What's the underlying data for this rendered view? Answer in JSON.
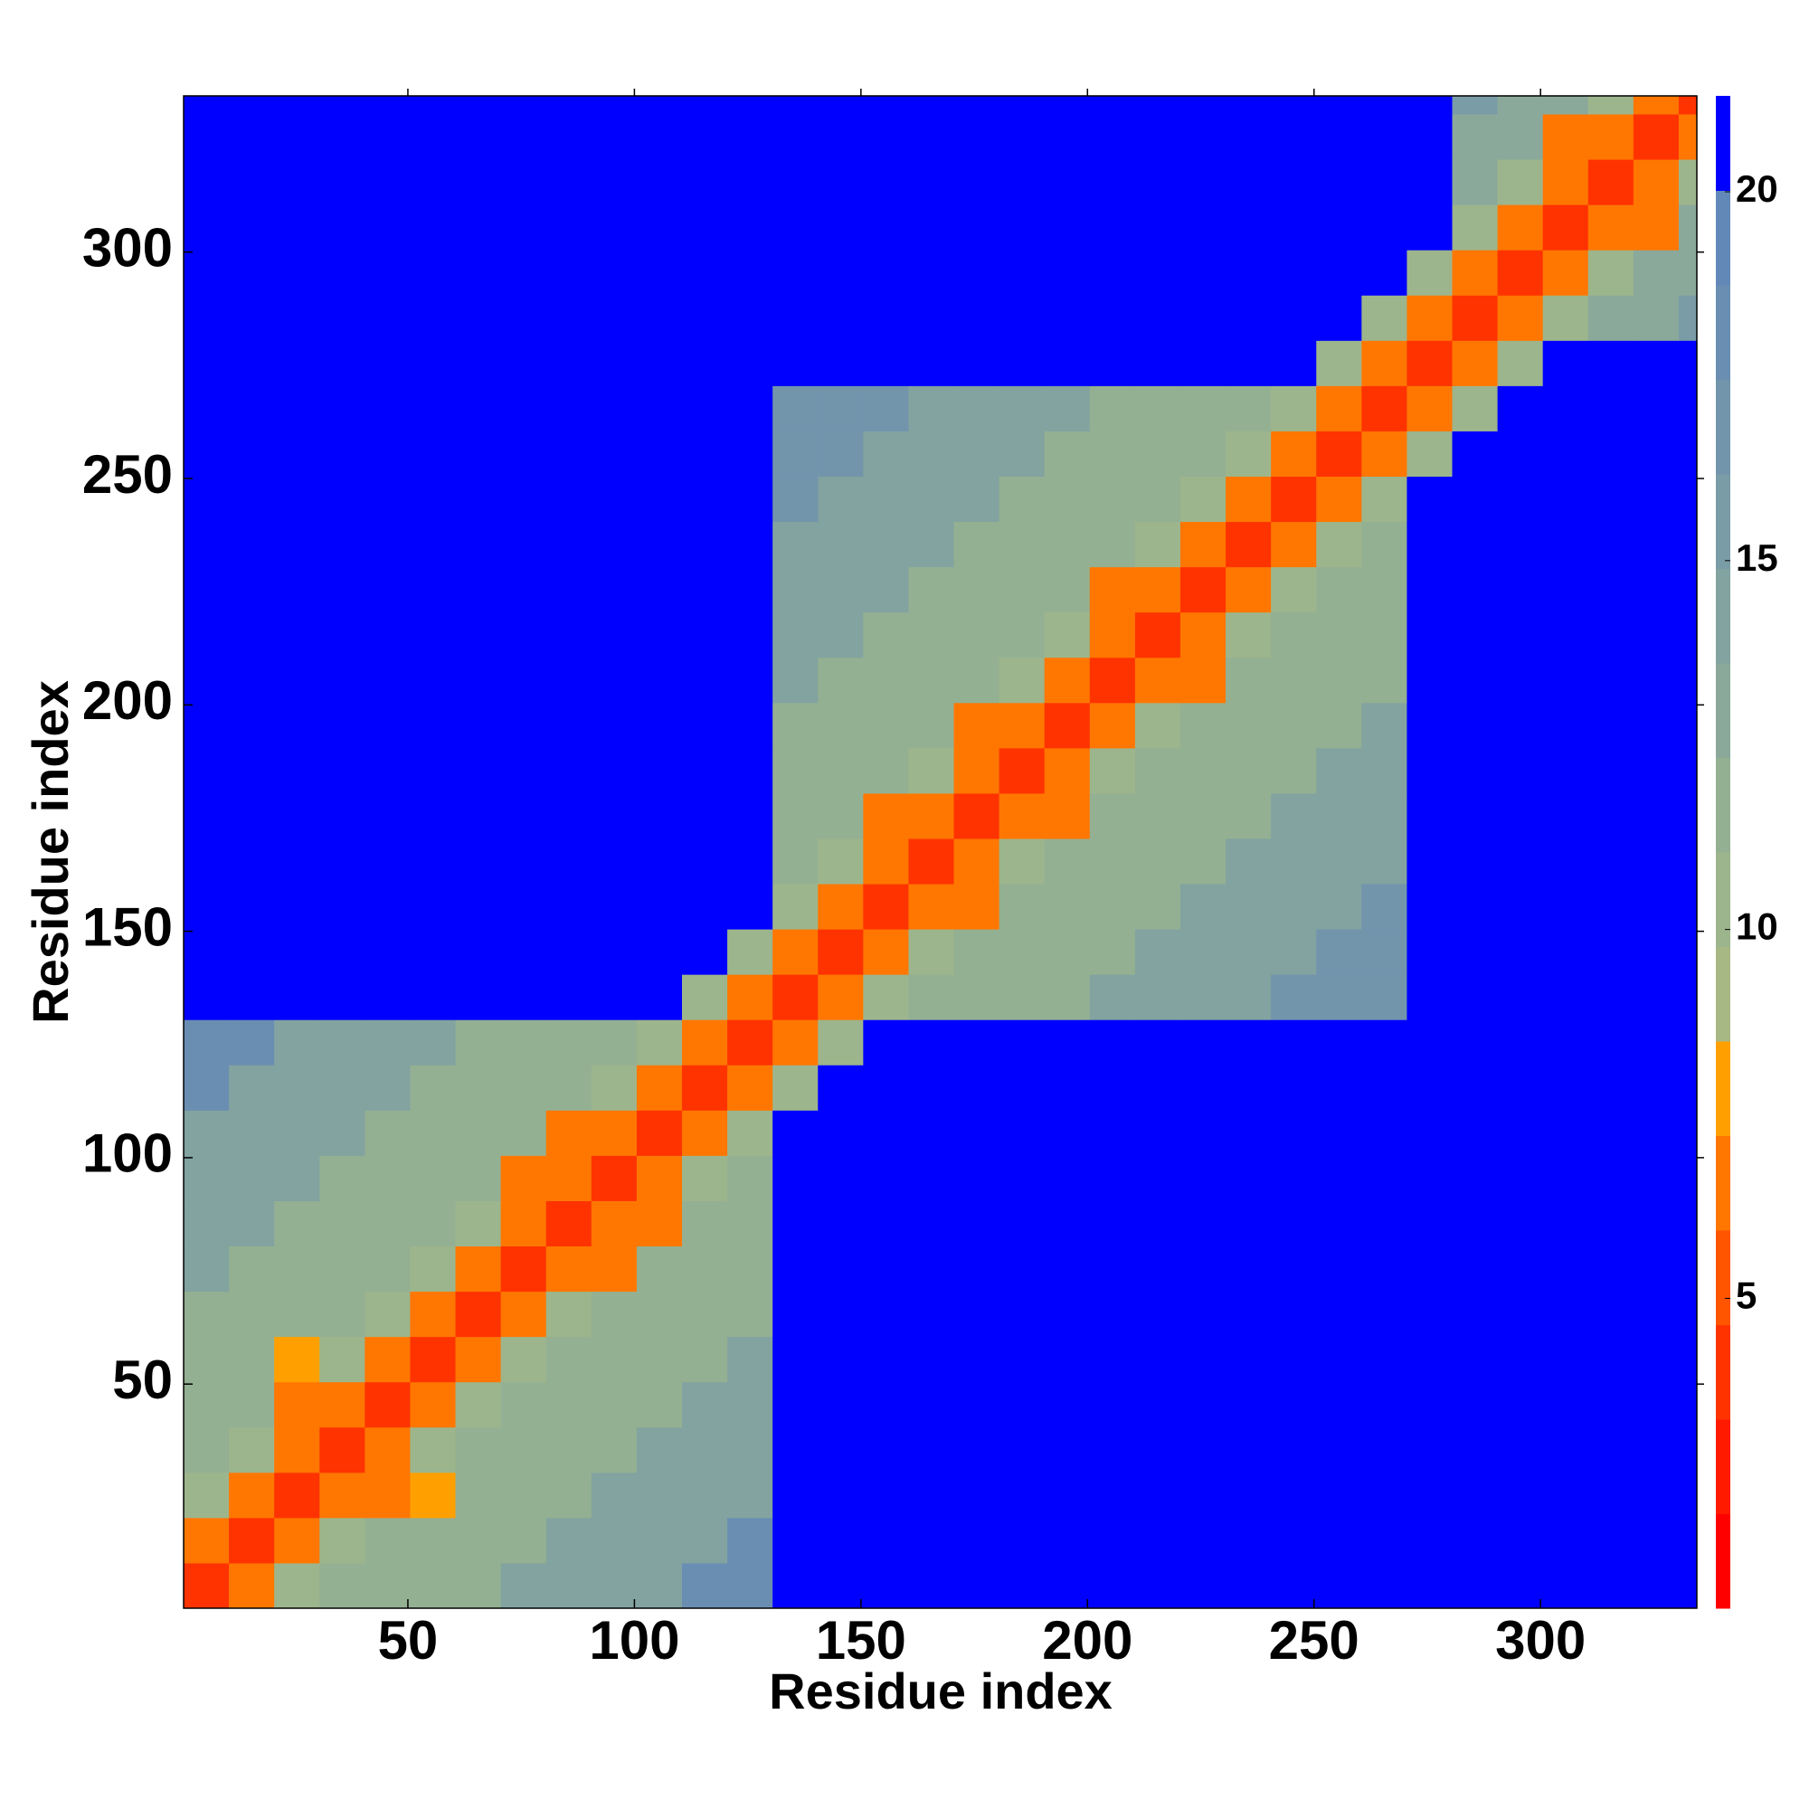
{
  "chart_data": {
    "type": "heatmap",
    "xlabel": "Residue index",
    "ylabel": "Residue index",
    "xbins": [
      0.5,
      10.5,
      20.5,
      30.5,
      40.5,
      50.5,
      60.5,
      70.5,
      80.5,
      90.5,
      100.5,
      110.5,
      120.5,
      130.5,
      140.5,
      150.5,
      160.5,
      170.5,
      180.5,
      190.5,
      200.5,
      210.5,
      220.5,
      230.5,
      240.5,
      250.5,
      260.5,
      270.5,
      280.5,
      290.5,
      300.5,
      310.5,
      320.5,
      330.5,
      334.5
    ],
    "ybins": [
      0.5,
      10.5,
      20.5,
      30.5,
      40.5,
      50.5,
      60.5,
      70.5,
      80.5,
      90.5,
      100.5,
      110.5,
      120.5,
      130.5,
      140.5,
      150.5,
      160.5,
      170.5,
      180.5,
      190.5,
      200.5,
      210.5,
      220.5,
      230.5,
      240.5,
      250.5,
      260.5,
      270.5,
      280.5,
      290.5,
      300.5,
      310.5,
      320.5,
      330.5,
      334.5
    ],
    "xlim": [
      0.5,
      334.5
    ],
    "ylim": [
      0.5,
      334.5
    ],
    "xticks": [
      50,
      100,
      150,
      200,
      250,
      300
    ],
    "yticks": [
      50,
      100,
      150,
      200,
      250,
      300
    ],
    "zlim": [
      0.8,
      21.3
    ],
    "colorbar_ticks": [
      5,
      10,
      15,
      20
    ],
    "colors": [
      "#ff0000",
      "#ff1a00",
      "#ff3300",
      "#ff5500",
      "#ff7700",
      "#ffa000",
      "#a8b884",
      "#9db58c",
      "#94b092",
      "#8aa99a",
      "#82a3a0",
      "#7a9ca6",
      "#7295ac",
      "#6a8eb2",
      "#6288b8",
      "#0000ff"
    ],
    "z": [
      [
        4,
        7,
        10,
        12,
        12,
        12,
        12,
        14,
        14,
        14,
        14,
        18,
        18,
        21,
        21,
        21,
        21,
        21,
        21,
        21,
        21,
        21,
        21,
        21,
        21,
        21,
        21,
        21,
        21,
        21,
        21,
        21,
        21,
        21
      ],
      [
        7,
        4,
        7,
        10,
        12,
        12,
        12,
        12,
        14,
        14,
        14,
        14,
        18,
        21,
        21,
        21,
        21,
        21,
        21,
        21,
        21,
        21,
        21,
        21,
        21,
        21,
        21,
        21,
        21,
        21,
        21,
        21,
        21,
        21
      ],
      [
        10,
        7,
        4,
        7,
        7,
        8,
        12,
        12,
        12,
        14,
        14,
        14,
        14,
        21,
        21,
        21,
        21,
        21,
        21,
        21,
        21,
        21,
        21,
        21,
        21,
        21,
        21,
        21,
        21,
        21,
        21,
        21,
        21,
        21
      ],
      [
        12,
        10,
        7,
        4,
        7,
        10,
        12,
        12,
        12,
        12,
        14,
        14,
        14,
        21,
        21,
        21,
        21,
        21,
        21,
        21,
        21,
        21,
        21,
        21,
        21,
        21,
        21,
        21,
        21,
        21,
        21,
        21,
        21,
        21
      ],
      [
        12,
        12,
        7,
        7,
        4,
        7,
        10,
        12,
        12,
        12,
        12,
        14,
        14,
        21,
        21,
        21,
        21,
        21,
        21,
        21,
        21,
        21,
        21,
        21,
        21,
        21,
        21,
        21,
        21,
        21,
        21,
        21,
        21,
        21
      ],
      [
        12,
        12,
        8,
        10,
        7,
        4,
        7,
        10,
        12,
        12,
        12,
        12,
        14,
        21,
        21,
        21,
        21,
        21,
        21,
        21,
        21,
        21,
        21,
        21,
        21,
        21,
        21,
        21,
        21,
        21,
        21,
        21,
        21,
        21
      ],
      [
        12,
        12,
        12,
        12,
        10,
        7,
        4,
        7,
        10,
        12,
        12,
        12,
        12,
        21,
        21,
        21,
        21,
        21,
        21,
        21,
        21,
        21,
        21,
        21,
        21,
        21,
        21,
        21,
        21,
        21,
        21,
        21,
        21,
        21
      ],
      [
        14,
        12,
        12,
        12,
        12,
        10,
        7,
        4,
        7,
        7,
        12,
        12,
        12,
        21,
        21,
        21,
        21,
        21,
        21,
        21,
        21,
        21,
        21,
        21,
        21,
        21,
        21,
        21,
        21,
        21,
        21,
        21,
        21,
        21
      ],
      [
        14,
        14,
        12,
        12,
        12,
        12,
        10,
        7,
        4,
        7,
        6,
        12,
        12,
        21,
        21,
        21,
        21,
        21,
        21,
        21,
        21,
        21,
        21,
        21,
        21,
        21,
        21,
        21,
        21,
        21,
        21,
        21,
        21,
        21
      ],
      [
        14,
        14,
        14,
        12,
        12,
        12,
        12,
        7,
        7,
        4,
        7,
        10,
        12,
        21,
        21,
        21,
        21,
        21,
        21,
        21,
        21,
        21,
        21,
        21,
        21,
        21,
        21,
        21,
        21,
        21,
        21,
        21,
        21,
        21
      ],
      [
        14,
        14,
        14,
        14,
        12,
        12,
        12,
        12,
        6,
        7,
        4,
        7,
        10,
        21,
        21,
        21,
        21,
        21,
        21,
        21,
        21,
        21,
        21,
        21,
        21,
        21,
        21,
        21,
        21,
        21,
        21,
        21,
        21,
        21
      ],
      [
        18,
        14,
        14,
        14,
        14,
        12,
        12,
        12,
        12,
        10,
        7,
        4,
        7,
        10,
        21,
        21,
        21,
        21,
        21,
        21,
        21,
        21,
        21,
        21,
        21,
        21,
        21,
        21,
        21,
        21,
        21,
        21,
        21,
        21
      ],
      [
        18,
        18,
        14,
        14,
        14,
        14,
        12,
        12,
        12,
        12,
        10,
        7,
        4,
        7,
        10,
        21,
        21,
        21,
        21,
        21,
        21,
        21,
        21,
        21,
        21,
        21,
        21,
        21,
        21,
        21,
        21,
        21,
        21,
        21
      ],
      [
        21,
        21,
        21,
        21,
        21,
        21,
        21,
        21,
        21,
        21,
        21,
        10,
        7,
        4,
        7,
        10,
        12,
        12,
        12,
        12,
        14,
        14,
        14,
        14,
        17,
        17,
        17,
        21,
        21,
        21,
        21,
        21,
        21,
        21
      ],
      [
        21,
        21,
        21,
        21,
        21,
        21,
        21,
        21,
        21,
        21,
        21,
        21,
        10,
        7,
        4,
        7,
        10,
        12,
        12,
        12,
        12,
        14,
        14,
        14,
        14,
        17,
        17,
        21,
        21,
        21,
        21,
        21,
        21,
        21
      ],
      [
        21,
        21,
        21,
        21,
        21,
        21,
        21,
        21,
        21,
        21,
        21,
        21,
        21,
        10,
        7,
        4,
        7,
        7,
        12,
        12,
        12,
        12,
        14,
        14,
        14,
        14,
        17,
        21,
        21,
        21,
        21,
        21,
        21,
        21
      ],
      [
        21,
        21,
        21,
        21,
        21,
        21,
        21,
        21,
        21,
        21,
        21,
        21,
        21,
        12,
        10,
        7,
        4,
        7,
        10,
        12,
        12,
        12,
        12,
        14,
        14,
        14,
        14,
        21,
        21,
        21,
        21,
        21,
        21,
        21
      ],
      [
        21,
        21,
        21,
        21,
        21,
        21,
        21,
        21,
        21,
        21,
        21,
        21,
        21,
        12,
        12,
        7,
        7,
        4,
        7,
        7,
        12,
        12,
        12,
        12,
        14,
        14,
        14,
        21,
        21,
        21,
        21,
        21,
        21,
        21
      ],
      [
        21,
        21,
        21,
        21,
        21,
        21,
        21,
        21,
        21,
        21,
        21,
        21,
        21,
        12,
        12,
        12,
        10,
        7,
        4,
        7,
        10,
        12,
        12,
        12,
        12,
        14,
        14,
        21,
        21,
        21,
        21,
        21,
        21,
        21
      ],
      [
        21,
        21,
        21,
        21,
        21,
        21,
        21,
        21,
        21,
        21,
        21,
        21,
        21,
        12,
        12,
        12,
        12,
        7,
        7,
        4,
        7,
        10,
        12,
        12,
        12,
        12,
        14,
        21,
        21,
        21,
        21,
        21,
        21,
        21
      ],
      [
        21,
        21,
        21,
        21,
        21,
        21,
        21,
        21,
        21,
        21,
        21,
        21,
        21,
        14,
        12,
        12,
        12,
        12,
        10,
        7,
        4,
        7,
        7,
        12,
        12,
        12,
        12,
        21,
        21,
        21,
        21,
        21,
        21,
        21
      ],
      [
        21,
        21,
        21,
        21,
        21,
        21,
        21,
        21,
        21,
        21,
        21,
        21,
        21,
        14,
        14,
        12,
        12,
        12,
        12,
        10,
        7,
        4,
        7,
        10,
        12,
        12,
        12,
        21,
        21,
        21,
        21,
        21,
        21,
        21
      ],
      [
        21,
        21,
        21,
        21,
        21,
        21,
        21,
        21,
        21,
        21,
        21,
        21,
        21,
        14,
        14,
        14,
        12,
        12,
        12,
        12,
        7,
        7,
        4,
        7,
        10,
        12,
        12,
        21,
        21,
        21,
        21,
        21,
        21,
        21
      ],
      [
        21,
        21,
        21,
        21,
        21,
        21,
        21,
        21,
        21,
        21,
        21,
        21,
        21,
        14,
        14,
        14,
        14,
        12,
        12,
        12,
        12,
        10,
        7,
        4,
        7,
        10,
        12,
        21,
        21,
        21,
        21,
        21,
        21,
        21
      ],
      [
        21,
        21,
        21,
        21,
        21,
        21,
        21,
        21,
        21,
        21,
        21,
        21,
        21,
        17,
        14,
        14,
        14,
        14,
        12,
        12,
        12,
        12,
        10,
        7,
        4,
        7,
        10,
        21,
        21,
        21,
        21,
        21,
        21,
        21
      ],
      [
        21,
        21,
        21,
        21,
        21,
        21,
        21,
        21,
        21,
        21,
        21,
        21,
        21,
        17,
        17,
        14,
        14,
        14,
        14,
        12,
        12,
        12,
        12,
        10,
        7,
        4,
        7,
        10,
        21,
        21,
        21,
        21,
        21,
        21
      ],
      [
        21,
        21,
        21,
        21,
        21,
        21,
        21,
        21,
        21,
        21,
        21,
        21,
        21,
        17,
        17,
        17,
        14,
        14,
        14,
        14,
        12,
        12,
        12,
        12,
        10,
        7,
        4,
        7,
        10,
        21,
        21,
        21,
        21,
        21
      ],
      [
        21,
        21,
        21,
        21,
        21,
        21,
        21,
        21,
        21,
        21,
        21,
        21,
        21,
        21,
        21,
        21,
        21,
        21,
        21,
        21,
        21,
        21,
        21,
        21,
        21,
        10,
        7,
        4,
        7,
        10,
        21,
        21,
        21,
        21
      ],
      [
        21,
        21,
        21,
        21,
        21,
        21,
        21,
        21,
        21,
        21,
        21,
        21,
        21,
        21,
        21,
        21,
        21,
        21,
        21,
        21,
        21,
        21,
        21,
        21,
        21,
        21,
        10,
        7,
        4,
        7,
        10,
        13,
        13,
        15
      ],
      [
        21,
        21,
        21,
        21,
        21,
        21,
        21,
        21,
        21,
        21,
        21,
        21,
        21,
        21,
        21,
        21,
        21,
        21,
        21,
        21,
        21,
        21,
        21,
        21,
        21,
        21,
        21,
        10,
        7,
        4,
        7,
        10,
        13,
        13
      ],
      [
        21,
        21,
        21,
        21,
        21,
        21,
        21,
        21,
        21,
        21,
        21,
        21,
        21,
        21,
        21,
        21,
        21,
        21,
        21,
        21,
        21,
        21,
        21,
        21,
        21,
        21,
        21,
        21,
        10,
        7,
        4,
        7,
        7,
        13
      ],
      [
        21,
        21,
        21,
        21,
        21,
        21,
        21,
        21,
        21,
        21,
        21,
        21,
        21,
        21,
        21,
        21,
        21,
        21,
        21,
        21,
        21,
        21,
        21,
        21,
        21,
        21,
        21,
        21,
        13,
        10,
        7,
        4,
        7,
        10
      ],
      [
        21,
        21,
        21,
        21,
        21,
        21,
        21,
        21,
        21,
        21,
        21,
        21,
        21,
        21,
        21,
        21,
        21,
        21,
        21,
        21,
        21,
        21,
        21,
        21,
        21,
        21,
        21,
        21,
        13,
        13,
        7,
        7,
        4,
        7
      ],
      [
        21,
        21,
        21,
        21,
        21,
        21,
        21,
        21,
        21,
        21,
        21,
        21,
        21,
        21,
        21,
        21,
        21,
        21,
        21,
        21,
        21,
        21,
        21,
        21,
        21,
        21,
        21,
        21,
        15,
        13,
        13,
        10,
        7,
        4
      ]
    ]
  }
}
